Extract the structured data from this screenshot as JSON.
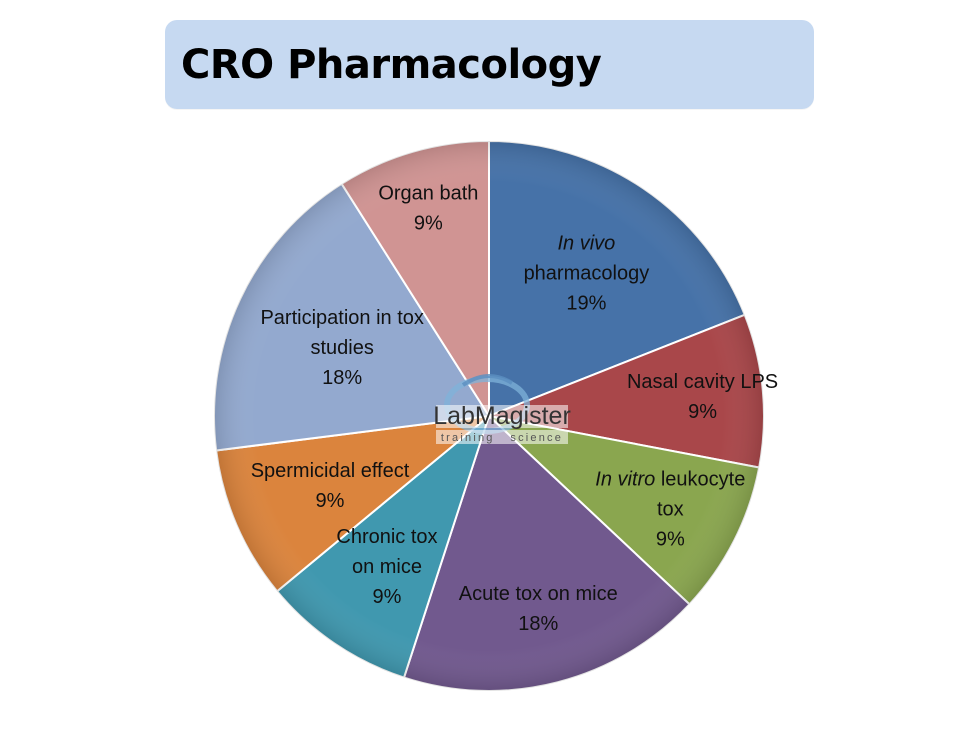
{
  "title": "CRO Pharmacology",
  "logo": {
    "main": "LabMagister",
    "sub": "training   science"
  },
  "chart_data": {
    "type": "pie",
    "title": "CRO Pharmacology",
    "slices": [
      {
        "lines": [
          [
            {
              "t": "In vivo",
              "i": true
            }
          ],
          [
            {
              "t": "pharmacology"
            }
          ],
          [
            {
              "t": "19%"
            }
          ]
        ],
        "value": 19,
        "color": "#4672a8"
      },
      {
        "lines": [
          [
            {
              "t": "Nasal cavity LPS"
            }
          ],
          [
            {
              "t": "9%"
            }
          ]
        ],
        "value": 9,
        "color": "#a9474a"
      },
      {
        "lines": [
          [
            {
              "t": "In vitro",
              "i": true
            },
            {
              "t": " leukocyte"
            }
          ],
          [
            {
              "t": "tox"
            }
          ],
          [
            {
              "t": "9%"
            }
          ]
        ],
        "value": 9,
        "color": "#8aa64f"
      },
      {
        "lines": [
          [
            {
              "t": "Acute tox on mice"
            }
          ],
          [
            {
              "t": "18%"
            }
          ]
        ],
        "value": 18,
        "color": "#71598e"
      },
      {
        "lines": [
          [
            {
              "t": "Chronic tox"
            }
          ],
          [
            {
              "t": "on mice"
            }
          ],
          [
            {
              "t": "9%"
            }
          ]
        ],
        "value": 9,
        "color": "#4098af"
      },
      {
        "lines": [
          [
            {
              "t": "Spermicidal effect"
            }
          ],
          [
            {
              "t": "9%"
            }
          ]
        ],
        "value": 9,
        "color": "#db843d"
      },
      {
        "lines": [
          [
            {
              "t": "Participation in tox"
            }
          ],
          [
            {
              "t": "studies"
            }
          ],
          [
            {
              "t": "18%"
            }
          ]
        ],
        "value": 18,
        "color": "#93a9cf"
      },
      {
        "lines": [
          [
            {
              "t": "Organ bath"
            }
          ],
          [
            {
              "t": "9%"
            }
          ]
        ],
        "value": 9,
        "color": "#d09493"
      }
    ]
  }
}
